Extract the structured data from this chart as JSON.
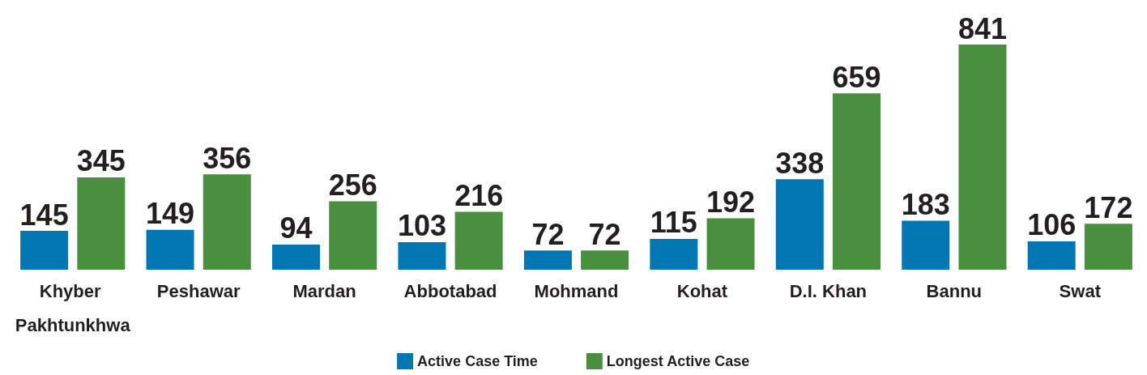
{
  "chart_data": {
    "type": "bar",
    "categories": [
      "Khyber Pakhtunkhwa",
      "Peshawar",
      "Mardan",
      "Abbotabad",
      "Mohmand",
      "Kohat",
      "D.I. Khan",
      "Bannu",
      "Swat"
    ],
    "series": [
      {
        "name": "Active Case Time",
        "color": "#0077b3",
        "values": [
          145,
          149,
          94,
          103,
          72,
          115,
          338,
          183,
          106
        ]
      },
      {
        "name": "Longest Active Case",
        "color": "#4a8f3f",
        "values": [
          345,
          356,
          256,
          216,
          72,
          192,
          659,
          841,
          172
        ]
      }
    ],
    "data_labels": true,
    "legend": "bottom"
  }
}
